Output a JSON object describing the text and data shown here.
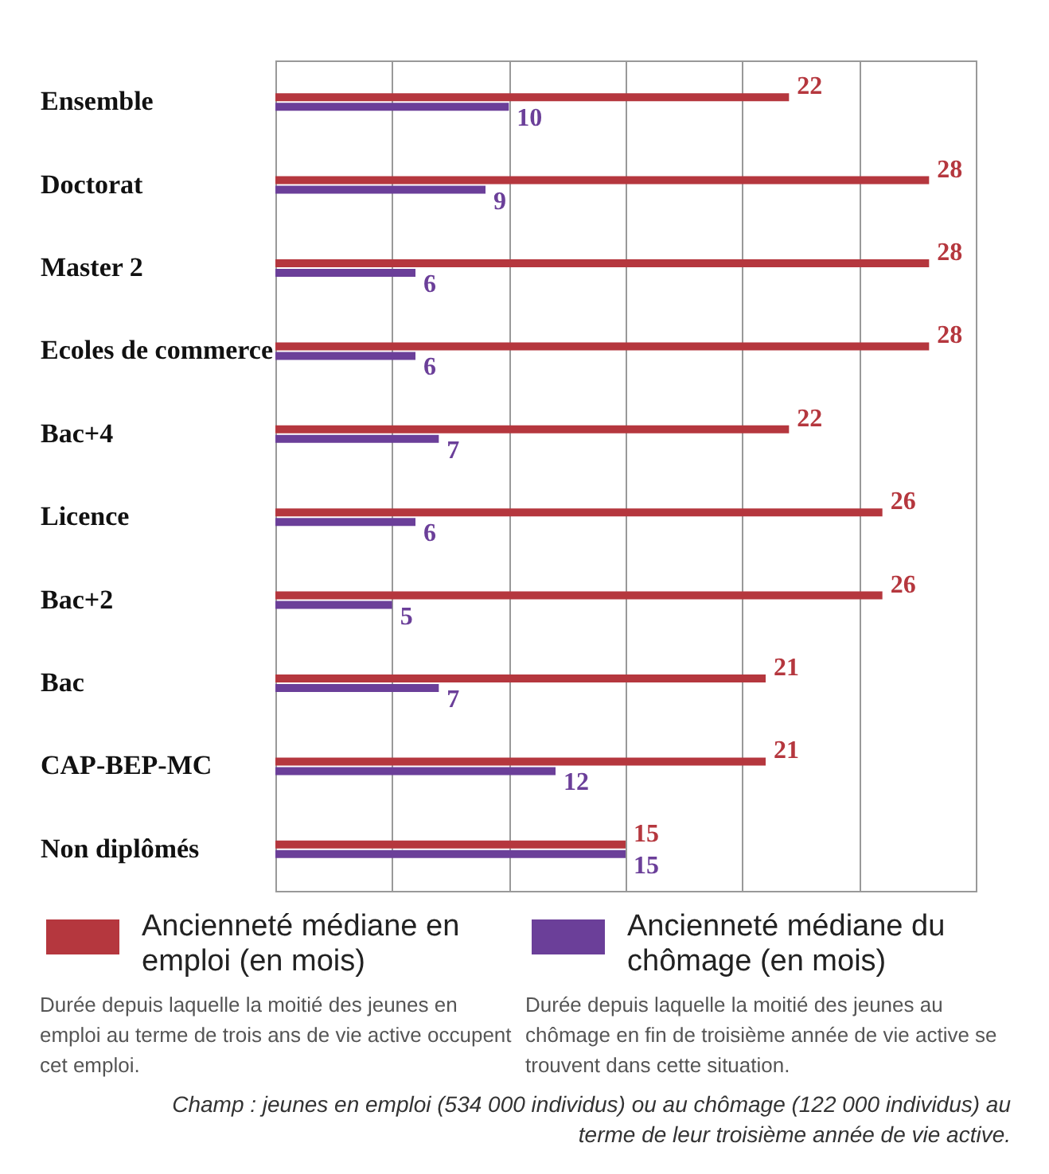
{
  "chart_data": {
    "type": "bar",
    "orientation": "horizontal",
    "categories": [
      "Ensemble",
      "Doctorat",
      "Master 2",
      "Ecoles de commerce",
      "Bac+4",
      "Licence",
      "Bac+2",
      "Bac",
      "CAP-BEP-MC",
      "Non diplômés"
    ],
    "series": [
      {
        "name": "Ancienneté médiane en emploi (en mois)",
        "color": "#b5373e",
        "values": [
          22,
          28,
          28,
          28,
          22,
          26,
          26,
          21,
          21,
          15
        ]
      },
      {
        "name": "Ancienneté médiane du chômage (en mois)",
        "color": "#6b3f99",
        "values": [
          10,
          9,
          6,
          6,
          7,
          6,
          5,
          7,
          12,
          15
        ]
      }
    ],
    "grid": "x",
    "tick_labels": "y",
    "data_labels": true,
    "legend": "bottom",
    "annotations": [
      "Durée depuis laquelle la moitié des jeunes en emploi au terme de trois ans de vie active occupent cet emploi.",
      "Durée depuis laquelle la moitié des jeunes au chômage en fin de troisième année de vie active se trouvent dans cette situation.",
      "Champ : jeunes en emploi (534 000 individus) ou au chômage (122 000 individus) au terme de leur troisième année de vie active."
    ]
  }
}
